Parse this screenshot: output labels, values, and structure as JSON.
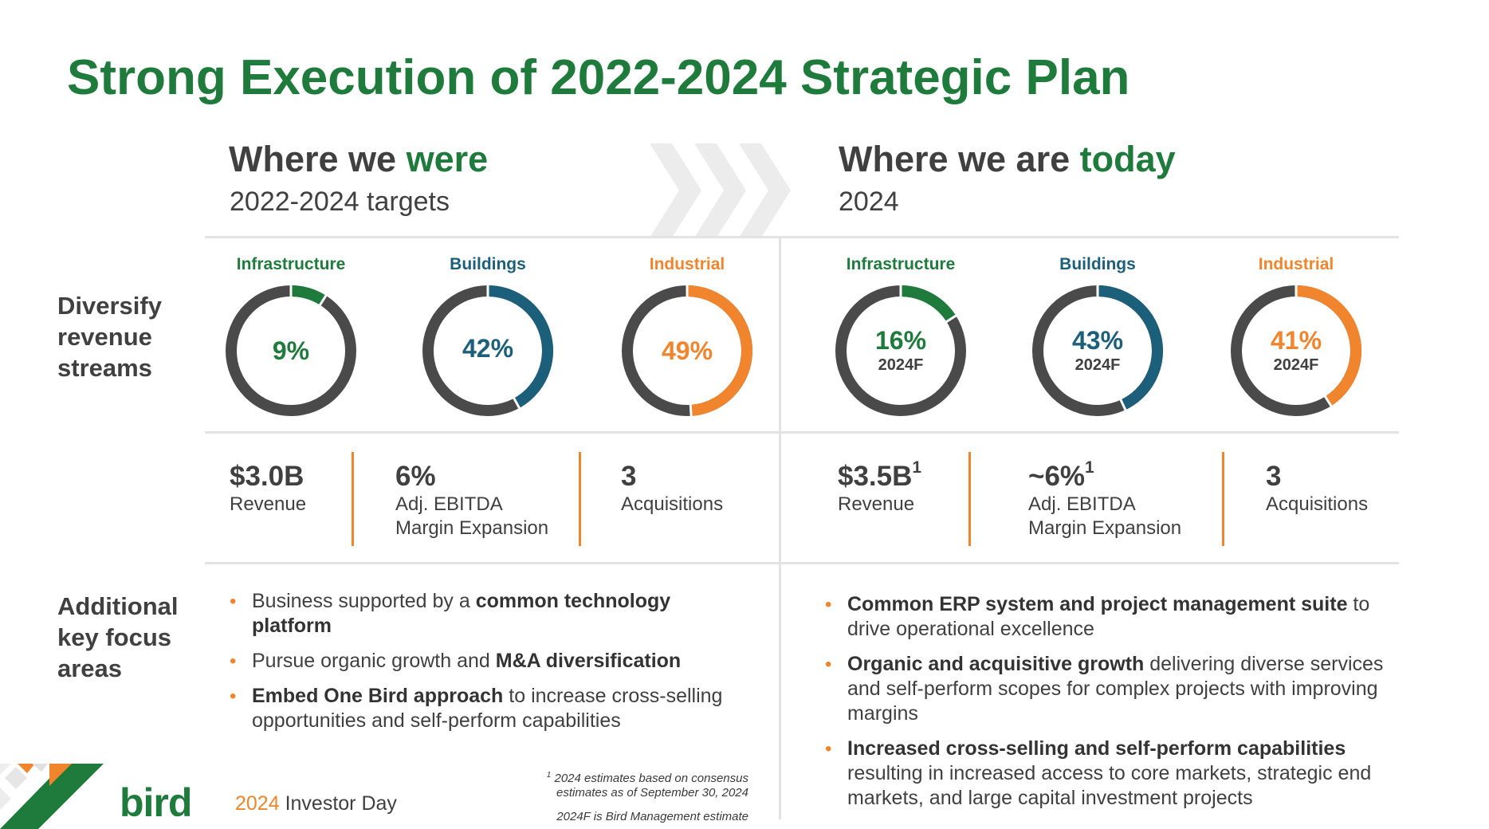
{
  "title": "Strong Execution of 2022-2024 Strategic Plan",
  "colors": {
    "green": "#1e7b3c",
    "blue": "#1c5f7b",
    "orange": "#f0852d",
    "ring": "#4a4a4a"
  },
  "left": {
    "heading_prefix": "Where we ",
    "heading_highlight": "were",
    "subheading": "2022-2024 targets",
    "donuts": [
      {
        "label": "Infrastructure",
        "pct_text": "9%",
        "value": 9,
        "sub": "",
        "color": "#1e7b3c"
      },
      {
        "label": "Buildings",
        "pct_text": "42%",
        "value": 42,
        "sub": "",
        "color": "#1c5f7b"
      },
      {
        "label": "Industrial",
        "pct_text": "49%",
        "value": 49,
        "sub": "",
        "color": "#f0852d"
      }
    ],
    "metrics": [
      {
        "value": "$3.0B",
        "sup": "",
        "label1": "Revenue",
        "label2": ""
      },
      {
        "value": "6%",
        "sup": "",
        "label1": "Adj. EBITDA",
        "label2": "Margin Expansion"
      },
      {
        "value": "3",
        "sup": "",
        "label1": "Acquisitions",
        "label2": ""
      }
    ],
    "bullets": [
      {
        "pre": "Business supported by a ",
        "bold": "common technology platform",
        "post": ""
      },
      {
        "pre": "Pursue organic growth and ",
        "bold": "M&A diversification",
        "post": ""
      },
      {
        "pre": "",
        "bold": "Embed One Bird approach",
        "post": " to increase cross-selling opportunities and self-perform capabilities"
      }
    ]
  },
  "right": {
    "heading_prefix": "Where we are ",
    "heading_highlight": "today",
    "subheading": "2024",
    "donuts": [
      {
        "label": "Infrastructure",
        "pct_text": "16%",
        "value": 16,
        "sub": "2024F",
        "color": "#1e7b3c"
      },
      {
        "label": "Buildings",
        "pct_text": "43%",
        "value": 43,
        "sub": "2024F",
        "color": "#1c5f7b"
      },
      {
        "label": "Industrial",
        "pct_text": "41%",
        "value": 41,
        "sub": "2024F",
        "color": "#f0852d"
      }
    ],
    "metrics": [
      {
        "value": "$3.5B",
        "sup": "1",
        "label1": "Revenue",
        "label2": ""
      },
      {
        "value": "~6%",
        "sup": "1",
        "label1": "Adj. EBITDA",
        "label2": "Margin Expansion"
      },
      {
        "value": "3",
        "sup": "",
        "label1": "Acquisitions",
        "label2": ""
      }
    ],
    "bullets": [
      {
        "pre": "",
        "bold": "Common ERP system and project management suite",
        "post": " to drive operational excellence"
      },
      {
        "pre": "",
        "bold": "Organic and acquisitive growth",
        "post": " delivering diverse services and self-perform scopes for complex projects with improving margins"
      },
      {
        "pre": "",
        "bold": "Increased cross-selling and self-perform capabilities",
        "post": " resulting in increased access to core markets, strategic end markets, and large capital investment projects"
      }
    ]
  },
  "row_labels": {
    "diversify": [
      "Diversify",
      "revenue",
      "streams"
    ],
    "additional": [
      "Additional",
      "key focus",
      "areas"
    ]
  },
  "footnotes": {
    "note1_sup": "1",
    "note1_line1": " 2024 estimates based on consensus",
    "note1_line2": "estimates as of September 30, 2024",
    "note2": "2024F is Bird Management estimate"
  },
  "footer": {
    "year": "2024",
    "event": " Investor Day",
    "logo_text": "bird"
  }
}
